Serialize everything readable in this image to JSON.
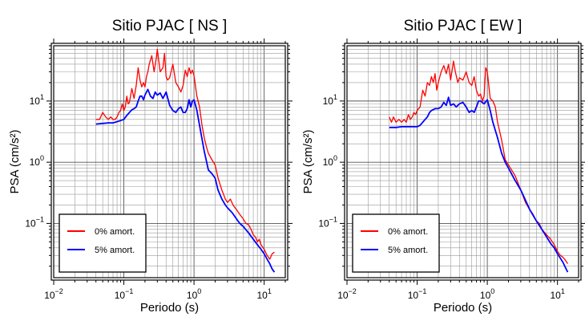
{
  "chart_data": [
    {
      "type": "line",
      "title": "Sitio PJAC [ NS ]",
      "xlabel": "Periodo (s)",
      "ylabel": "PSA (cm/s²)",
      "xscale": "log",
      "yscale": "log",
      "xlim": [
        0.01,
        20
      ],
      "ylim": [
        0.013,
        80
      ],
      "grid": true,
      "legend_position": "bottom-left",
      "legend": [
        "0% amort.",
        "5% amort."
      ],
      "series": [
        {
          "name": "0% amort.",
          "color": "#ff0000",
          "x": [
            0.04,
            0.045,
            0.05,
            0.055,
            0.06,
            0.065,
            0.07,
            0.075,
            0.08,
            0.085,
            0.09,
            0.095,
            0.1,
            0.105,
            0.11,
            0.115,
            0.12,
            0.13,
            0.14,
            0.15,
            0.16,
            0.17,
            0.18,
            0.19,
            0.2,
            0.21,
            0.22,
            0.23,
            0.25,
            0.27,
            0.29,
            0.3,
            0.33,
            0.36,
            0.38,
            0.4,
            0.42,
            0.45,
            0.5,
            0.55,
            0.6,
            0.65,
            0.7,
            0.75,
            0.8,
            0.85,
            0.9,
            0.95,
            1.0,
            1.1,
            1.2,
            1.3,
            1.4,
            1.5,
            1.6,
            1.8,
            2.0,
            2.2,
            2.5,
            2.8,
            3.0,
            3.3,
            3.6,
            4.0,
            4.5,
            5.0,
            5.5,
            6.0,
            6.5,
            7.0,
            7.5,
            8.0,
            8.5,
            9.0,
            10.0,
            11.0,
            12.0,
            13.0,
            14.0
          ],
          "values": [
            5.0,
            5.0,
            6.5,
            5.5,
            5.0,
            5.5,
            5.0,
            5.0,
            5.5,
            6.5,
            7.0,
            9.0,
            7.0,
            8.0,
            12.0,
            9.0,
            9.5,
            16.0,
            11.0,
            18.0,
            35.0,
            22.0,
            17.0,
            20.0,
            17.0,
            25.0,
            30.0,
            40.0,
            55.0,
            30.0,
            50.0,
            70.0,
            30.0,
            35.0,
            60.0,
            25.0,
            22.0,
            24.0,
            40.0,
            20.0,
            17.0,
            14.0,
            18.0,
            32.0,
            25.0,
            35.0,
            28.0,
            32.0,
            26.0,
            12.0,
            8.0,
            4.0,
            2.5,
            1.8,
            1.4,
            1.1,
            0.9,
            0.55,
            0.35,
            0.25,
            0.22,
            0.25,
            0.2,
            0.17,
            0.14,
            0.12,
            0.1,
            0.095,
            0.08,
            0.065,
            0.06,
            0.05,
            0.055,
            0.045,
            0.038,
            0.03,
            0.026,
            0.032,
            0.034
          ]
        },
        {
          "name": "5% amort.",
          "color": "#0000ff",
          "x": [
            0.04,
            0.05,
            0.06,
            0.07,
            0.08,
            0.09,
            0.1,
            0.11,
            0.12,
            0.13,
            0.14,
            0.15,
            0.16,
            0.17,
            0.18,
            0.19,
            0.2,
            0.22,
            0.24,
            0.26,
            0.28,
            0.3,
            0.33,
            0.36,
            0.4,
            0.45,
            0.5,
            0.55,
            0.6,
            0.65,
            0.7,
            0.75,
            0.8,
            0.85,
            0.9,
            0.95,
            1.0,
            1.1,
            1.2,
            1.4,
            1.6,
            1.8,
            2.0,
            2.2,
            2.5,
            2.8,
            3.0,
            3.5,
            4.0,
            4.5,
            5.0,
            6.0,
            7.0,
            8.0,
            9.0,
            10.0,
            11.0,
            12.0,
            13.0,
            14.0
          ],
          "values": [
            4.2,
            4.3,
            4.4,
            4.4,
            4.6,
            4.8,
            5.0,
            5.8,
            6.5,
            7.2,
            7.5,
            8.0,
            10.0,
            12.0,
            12.0,
            10.5,
            12.5,
            15.5,
            12.0,
            11.0,
            14.0,
            12.5,
            13.5,
            11.0,
            14.0,
            8.5,
            7.0,
            6.5,
            7.5,
            8.0,
            6.5,
            6.5,
            7.5,
            10.5,
            8.0,
            10.0,
            10.5,
            7.0,
            4.0,
            1.5,
            0.75,
            0.65,
            0.55,
            0.35,
            0.25,
            0.2,
            0.18,
            0.15,
            0.12,
            0.1,
            0.09,
            0.07,
            0.055,
            0.045,
            0.038,
            0.032,
            0.026,
            0.022,
            0.018,
            0.016
          ]
        }
      ]
    },
    {
      "type": "line",
      "title": "Sitio PJAC [ EW ]",
      "xlabel": "Periodo (s)",
      "ylabel": "PSA (cm/s²)",
      "xscale": "log",
      "yscale": "log",
      "xlim": [
        0.01,
        20
      ],
      "ylim": [
        0.013,
        80
      ],
      "grid": true,
      "legend_position": "bottom-left",
      "legend": [
        "0% amort.",
        "5% amort."
      ],
      "series": [
        {
          "name": "0% amort.",
          "color": "#ff0000",
          "x": [
            0.04,
            0.043,
            0.046,
            0.05,
            0.055,
            0.06,
            0.065,
            0.07,
            0.075,
            0.08,
            0.085,
            0.09,
            0.095,
            0.1,
            0.11,
            0.12,
            0.13,
            0.14,
            0.15,
            0.16,
            0.17,
            0.18,
            0.19,
            0.2,
            0.22,
            0.24,
            0.26,
            0.28,
            0.3,
            0.33,
            0.35,
            0.38,
            0.4,
            0.45,
            0.5,
            0.55,
            0.6,
            0.65,
            0.7,
            0.75,
            0.8,
            0.85,
            0.9,
            0.95,
            1.0,
            1.1,
            1.2,
            1.3,
            1.4,
            1.6,
            1.8,
            2.0,
            2.5,
            3.0,
            3.5,
            4.0,
            4.5,
            5.0,
            5.5,
            6.0,
            7.0,
            8.0,
            9.0,
            10.0,
            11.0,
            12.0,
            13.0,
            14.0
          ],
          "values": [
            5.5,
            4.5,
            5.5,
            4.5,
            5.0,
            4.5,
            5.0,
            4.5,
            6.0,
            5.0,
            5.5,
            6.5,
            6.0,
            7.0,
            8.0,
            15.0,
            12.0,
            20.0,
            18.0,
            25.0,
            20.0,
            28.0,
            15.0,
            20.0,
            30.0,
            38.0,
            28.0,
            40.0,
            22.0,
            45.0,
            30.0,
            20.0,
            24.0,
            22.0,
            30.0,
            20.0,
            18.0,
            25.0,
            15.0,
            12.0,
            13.0,
            10.0,
            12.0,
            35.0,
            30.0,
            11.0,
            10.0,
            8.0,
            4.5,
            2.3,
            1.1,
            0.9,
            0.6,
            0.35,
            0.22,
            0.17,
            0.14,
            0.11,
            0.1,
            0.08,
            0.065,
            0.055,
            0.045,
            0.035,
            0.03,
            0.028,
            0.025,
            0.022
          ]
        },
        {
          "name": "5% amort.",
          "color": "#0000ff",
          "x": [
            0.04,
            0.05,
            0.06,
            0.07,
            0.08,
            0.09,
            0.1,
            0.11,
            0.12,
            0.13,
            0.14,
            0.15,
            0.16,
            0.18,
            0.2,
            0.22,
            0.24,
            0.26,
            0.28,
            0.3,
            0.33,
            0.36,
            0.4,
            0.45,
            0.5,
            0.55,
            0.6,
            0.65,
            0.7,
            0.75,
            0.8,
            0.9,
            1.0,
            1.1,
            1.2,
            1.4,
            1.6,
            1.8,
            2.0,
            2.5,
            3.0,
            3.5,
            4.0,
            5.0,
            6.0,
            7.0,
            8.0,
            9.0,
            10.0,
            11.0,
            12.0,
            13.0,
            14.0
          ],
          "values": [
            3.7,
            3.7,
            3.8,
            3.8,
            3.8,
            3.8,
            3.8,
            4.0,
            4.5,
            5.0,
            5.5,
            6.5,
            7.0,
            7.5,
            7.5,
            8.0,
            9.5,
            8.5,
            11.5,
            8.5,
            9.0,
            8.0,
            9.0,
            9.5,
            8.0,
            6.5,
            7.0,
            6.5,
            8.0,
            10.0,
            10.0,
            9.0,
            10.5,
            7.0,
            4.5,
            2.5,
            1.4,
            1.0,
            0.8,
            0.5,
            0.35,
            0.24,
            0.17,
            0.11,
            0.08,
            0.06,
            0.047,
            0.04,
            0.032,
            0.027,
            0.023,
            0.019,
            0.016
          ]
        }
      ]
    }
  ]
}
